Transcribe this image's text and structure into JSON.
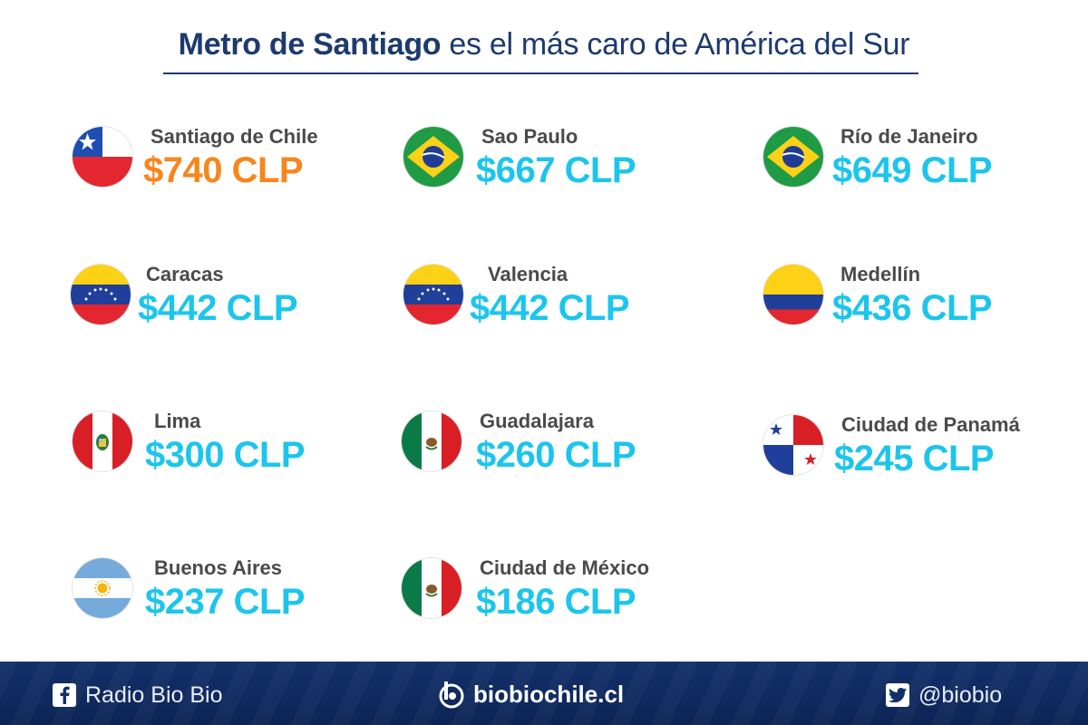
{
  "title": {
    "bold": "Metro de Santiago",
    "rest": " es el más caro de América del Sur"
  },
  "colors": {
    "title": "#1c3a6e",
    "price": "#1cc5ec",
    "highlight": "#f7861c",
    "footer": "#13306a"
  },
  "entries": [
    {
      "city": "Santiago de Chile",
      "price": "$740 CLP",
      "flag": "chile-flag-icon"
    },
    {
      "city": "Sao Paulo",
      "price": "$667 CLP",
      "flag": "brazil-flag-icon"
    },
    {
      "city": "Río de Janeiro",
      "price": "$649 CLP",
      "flag": "brazil-flag-icon"
    },
    {
      "city": "Caracas",
      "price": "$442 CLP",
      "flag": "venezuela-flag-icon"
    },
    {
      "city": "Valencia",
      "price": "$442 CLP",
      "flag": "venezuela-flag-icon"
    },
    {
      "city": "Medellín",
      "price": "$436 CLP",
      "flag": "colombia-flag-icon"
    },
    {
      "city": "Lima",
      "price": "$300 CLP",
      "flag": "peru-flag-icon"
    },
    {
      "city": "Guadalajara",
      "price": "$260 CLP",
      "flag": "mexico-flag-icon"
    },
    {
      "city": "Ciudad de Panamá",
      "price": "$245 CLP",
      "flag": "panama-flag-icon"
    },
    {
      "city": "Buenos Aires",
      "price": "$237 CLP",
      "flag": "argentina-flag-icon"
    },
    {
      "city": "Ciudad de México",
      "price": "$186 CLP",
      "flag": "mexico-flag-icon"
    }
  ],
  "footer": {
    "facebook": "Radio Bio Bio",
    "site": "biobiochile.cl",
    "twitter": "@biobio"
  }
}
